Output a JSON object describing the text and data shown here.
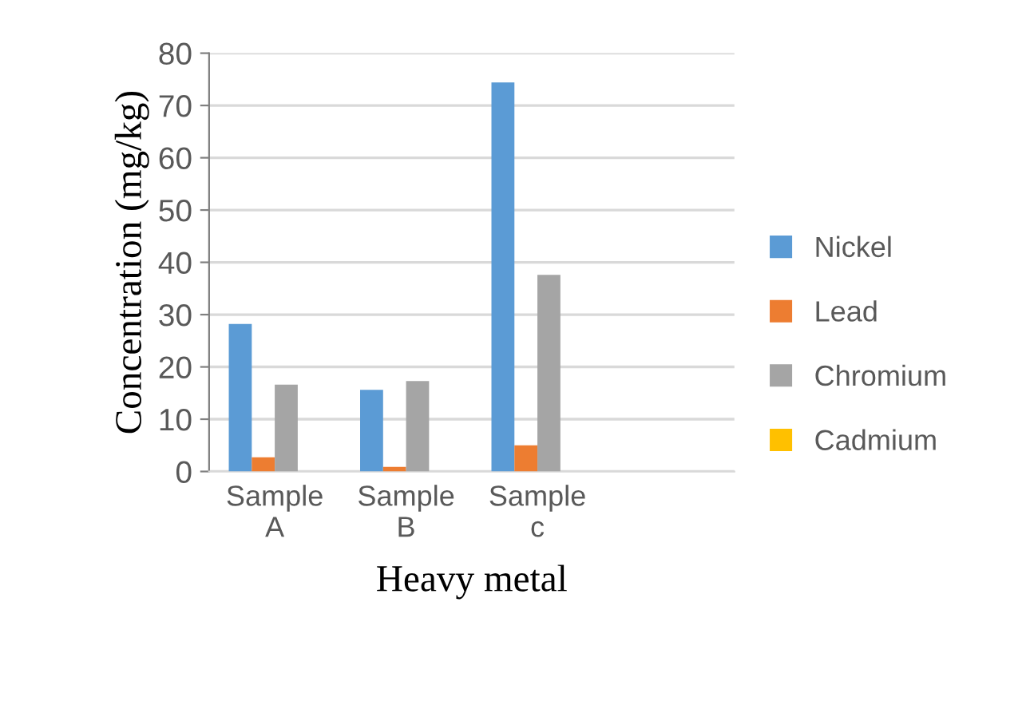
{
  "chart_data": {
    "type": "bar",
    "xlabel": "Heavy metal",
    "ylabel": "Concentration (mg/kg)",
    "categories": [
      "Sample\nA",
      "Sample\nB",
      "Sample\nc",
      null
    ],
    "series": [
      {
        "name": "Nickel",
        "color": "#5b9bd5",
        "values": [
          28.2,
          15.6,
          74.4,
          null
        ]
      },
      {
        "name": "Lead",
        "color": "#ed7d31",
        "values": [
          2.7,
          0.9,
          5.0,
          null
        ]
      },
      {
        "name": "Chromium",
        "color": "#a5a5a5",
        "values": [
          16.6,
          17.3,
          37.6,
          null
        ]
      },
      {
        "name": "Cadmium",
        "color": "#ffc000",
        "values": [
          0,
          0,
          0,
          null
        ]
      }
    ],
    "ylim": [
      0,
      80
    ],
    "yticks": [
      0,
      10,
      20,
      30,
      40,
      50,
      60,
      70,
      80
    ],
    "grid": "y",
    "legend": "right"
  }
}
